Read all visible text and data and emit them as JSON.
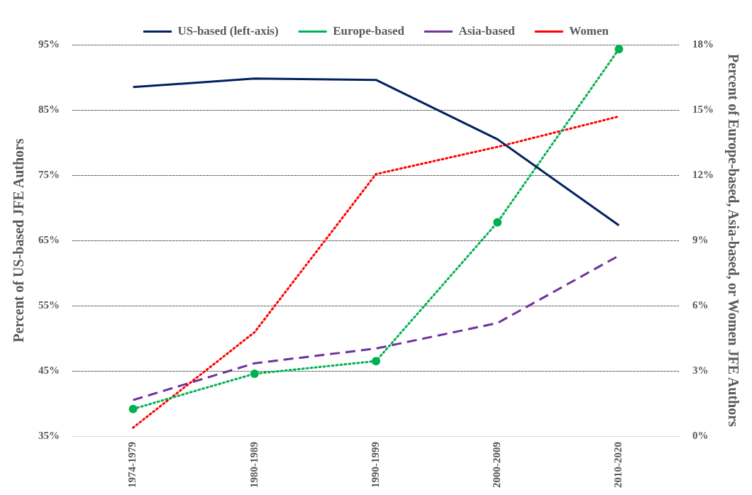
{
  "chart_data": {
    "type": "line",
    "categories": [
      "1974-1979",
      "1980-1989",
      "1990-1999",
      "2000-2009",
      "2010-2020"
    ],
    "ylabel": "Percent of US-based JFE Authors",
    "y2label": "Percent of Europe-based, Asia-based, or Women JFE Authors",
    "series": [
      {
        "name": "US-based (left-axis)",
        "color": "#002060",
        "values": [
          88.5,
          89.8,
          89.6,
          80.5,
          67.3
        ],
        "line_style": "solid",
        "marker": "none"
      },
      {
        "name": "Europe-based",
        "color": "#00b050",
        "values": [
          1.25,
          2.87,
          3.45,
          9.83,
          17.8
        ],
        "axis": "y2",
        "line_style": "dotted",
        "marker": "circle"
      },
      {
        "name": "Asia-based",
        "color": "#7030a0",
        "values": [
          1.66,
          3.35,
          4.03,
          5.2,
          8.3
        ],
        "axis": "y2",
        "line_style": "dashed",
        "marker": "none"
      },
      {
        "name": "Women",
        "color": "#ff0000",
        "values": [
          0.39,
          4.78,
          12.05,
          13.3,
          14.7
        ],
        "axis": "y2",
        "line_style": "dotted",
        "marker": "none"
      }
    ],
    "ylim": [
      35,
      95
    ],
    "yticks": [
      {
        "value": 35,
        "label": "35%"
      },
      {
        "value": 45,
        "label": "45%"
      },
      {
        "value": 55,
        "label": "55%"
      },
      {
        "value": 65,
        "label": "65%"
      },
      {
        "value": 75,
        "label": "75%"
      },
      {
        "value": 85,
        "label": "85%"
      },
      {
        "value": 95,
        "label": "95%"
      }
    ],
    "y2lim": [
      0,
      18
    ],
    "y2ticks": [
      {
        "value": 0,
        "label": "0%"
      },
      {
        "value": 3,
        "label": "3%"
      },
      {
        "value": 6,
        "label": "6%"
      },
      {
        "value": 9,
        "label": "9%"
      },
      {
        "value": 12,
        "label": "12%"
      },
      {
        "value": 15,
        "label": "15%"
      },
      {
        "value": 18,
        "label": "18%"
      }
    ],
    "grid": "y",
    "legend": "top"
  }
}
